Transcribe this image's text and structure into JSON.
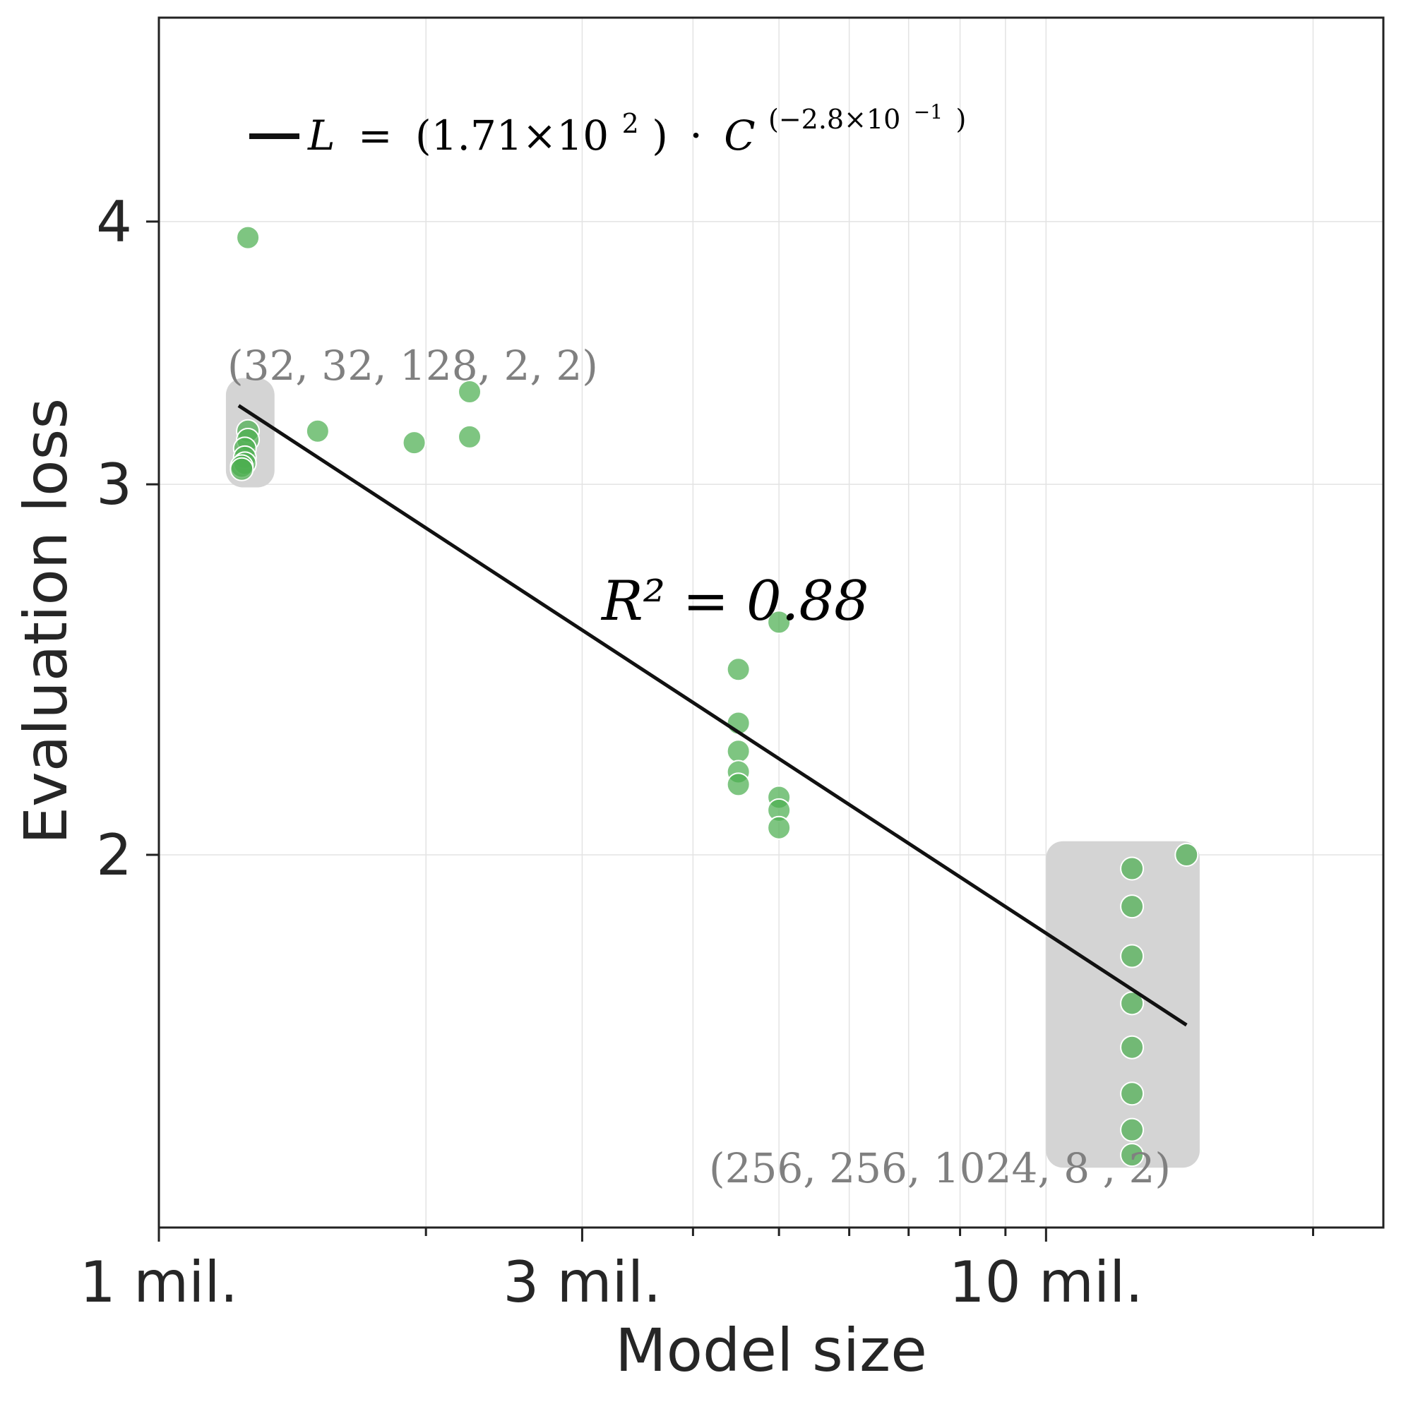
{
  "chart_data": {
    "type": "scatter",
    "title": "",
    "xlabel": "Model size",
    "ylabel": "Evaluation loss",
    "x_scale": "log",
    "y_scale": "log",
    "xlim": [
      1000000,
      24000000
    ],
    "ylim": [
      1.33,
      5.0
    ],
    "x_ticks": [
      {
        "value": 1000000,
        "label": "1 mil."
      },
      {
        "value": 3000000,
        "label": "3 mil."
      },
      {
        "value": 10000000,
        "label": "10 mil."
      }
    ],
    "x_minor_ticks": [
      2000000,
      4000000,
      5000000,
      6000000,
      7000000,
      8000000,
      9000000,
      20000000
    ],
    "y_ticks": [
      {
        "value": 2,
        "label": "2"
      },
      {
        "value": 3,
        "label": "3"
      },
      {
        "value": 4,
        "label": "4"
      }
    ],
    "grid": true,
    "series": [
      {
        "name": "Evaluation loss",
        "color": "#4caf50",
        "points": [
          {
            "x": 1260000,
            "y": 3.93
          },
          {
            "x": 1260000,
            "y": 3.18
          },
          {
            "x": 1260000,
            "y": 3.15
          },
          {
            "x": 1250000,
            "y": 3.12
          },
          {
            "x": 1250000,
            "y": 3.09
          },
          {
            "x": 1250000,
            "y": 3.07
          },
          {
            "x": 1240000,
            "y": 3.06
          },
          {
            "x": 1240000,
            "y": 3.05
          },
          {
            "x": 1510000,
            "y": 3.18
          },
          {
            "x": 1940000,
            "y": 3.14
          },
          {
            "x": 2240000,
            "y": 3.32
          },
          {
            "x": 2240000,
            "y": 3.16
          },
          {
            "x": 5000000,
            "y": 2.58
          },
          {
            "x": 4500000,
            "y": 2.45
          },
          {
            "x": 4500000,
            "y": 2.31
          },
          {
            "x": 4500000,
            "y": 2.24
          },
          {
            "x": 4500000,
            "y": 2.19
          },
          {
            "x": 4500000,
            "y": 2.16
          },
          {
            "x": 5000000,
            "y": 2.13
          },
          {
            "x": 5000000,
            "y": 2.1
          },
          {
            "x": 5000000,
            "y": 2.06
          },
          {
            "x": 14400000,
            "y": 2.0
          },
          {
            "x": 12500000,
            "y": 1.97
          },
          {
            "x": 12500000,
            "y": 1.89
          },
          {
            "x": 12500000,
            "y": 1.79
          },
          {
            "x": 12500000,
            "y": 1.7
          },
          {
            "x": 12500000,
            "y": 1.62
          },
          {
            "x": 12500000,
            "y": 1.54
          },
          {
            "x": 12500000,
            "y": 1.48
          },
          {
            "x": 12500000,
            "y": 1.44
          }
        ]
      }
    ],
    "fit_line": {
      "label": "L = (1.71×10²) · C^(−2.8×10⁻¹)",
      "color": "#111111",
      "x_range": [
        1230000,
        14400000
      ],
      "y_range": [
        3.27,
        1.66
      ]
    },
    "highlight_regions": [
      {
        "x_range": [
          1190000,
          1350000
        ],
        "y_range": [
          2.99,
          3.37
        ],
        "label": "(32, 32, 128, 2, 2)"
      },
      {
        "x_range": [
          10000000,
          14900000
        ],
        "y_range": [
          1.42,
          2.03
        ],
        "label": "(256, 256, 1024, 8 , 2)"
      }
    ],
    "annotations": [
      {
        "text": "R² = 0.88"
      }
    ],
    "legend": {
      "placement": "top-left",
      "equation": {
        "L": "L",
        "equals": "=",
        "coef_open": "(1.71×10",
        "coef_exp": "2",
        "coef_close": ")",
        "dot": "·",
        "C": "C",
        "power": "(−2.8×10",
        "power_exp": "−1",
        "power_close": ")"
      }
    }
  }
}
